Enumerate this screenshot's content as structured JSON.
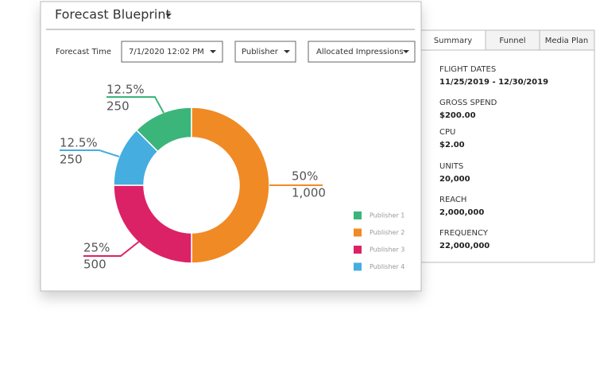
{
  "header": {
    "title": "Forecast Blueprint"
  },
  "filters": {
    "time_label": "Forecast Time",
    "time": "7/1/2020 12:02 PM",
    "group": "Publisher",
    "metric": "Allocated Impressions"
  },
  "chart_data": {
    "type": "donut",
    "categories": [
      "Publisher 1",
      "Publisher 2",
      "Publisher 3",
      "Publisher 4"
    ],
    "values": [
      12.5,
      50,
      25,
      12.5
    ],
    "value_labels": [
      "12.5%",
      "50%",
      "25%",
      "12.5%"
    ],
    "impressions": [
      250,
      1000,
      500,
      250
    ],
    "impression_labels": [
      "250",
      "1,000",
      "500",
      "250"
    ],
    "colors": [
      "#3bb57a",
      "#f08a24",
      "#dc2266",
      "#45ade0"
    ]
  },
  "summary": {
    "tabs": [
      "Summary",
      "Funnel",
      "Media Plan"
    ],
    "items": [
      {
        "label": "FLIGHT DATES",
        "value": "11/25/2019 - 12/30/2019"
      },
      {
        "label": "GROSS SPEND",
        "value": "$200.00"
      },
      {
        "label": "CPU",
        "value": "$2.00"
      },
      {
        "label": "UNITS",
        "value": "20,000"
      },
      {
        "label": "REACH",
        "value": "2,000,000"
      },
      {
        "label": "FREQUENCY",
        "value": "22,000,000"
      }
    ]
  }
}
